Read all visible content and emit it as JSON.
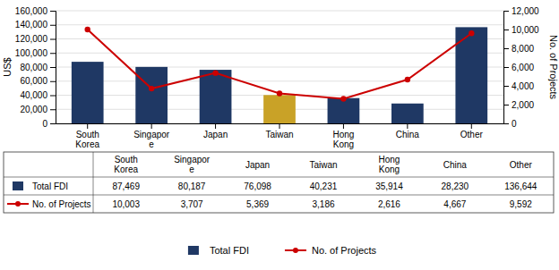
{
  "chart_data": {
    "type": "bar",
    "categories": [
      "South\nKorea",
      "Singapor\ne",
      "Japan",
      "Taiwan",
      "Hong\nKong",
      "China",
      "Other"
    ],
    "series": [
      {
        "name": "Total FDI",
        "type": "bar",
        "colors": [
          "#1f3864",
          "#1f3864",
          "#1f3864",
          "#c9a227",
          "#1f3864",
          "#1f3864",
          "#1f3864"
        ],
        "values": [
          87469,
          80187,
          76098,
          40231,
          35914,
          28230,
          136644
        ],
        "value_labels": [
          "87,469",
          "80,187",
          "76,098",
          "40,231",
          "35,914",
          "28,230",
          "136,644"
        ]
      },
      {
        "name": "No. of Projects",
        "type": "line",
        "axis": "y2",
        "color": "#cc0000",
        "marker": "o",
        "values": [
          10003,
          3707,
          5369,
          3186,
          2616,
          4667,
          9592
        ],
        "value_labels": [
          "10,003",
          "3,707",
          "5,369",
          "3,186",
          "2,616",
          "4,667",
          "9,592"
        ]
      }
    ],
    "ylabel": "US$",
    "y2label": "No. of Projects",
    "ylim": [
      0,
      160000
    ],
    "yticks": [
      0,
      {
        "value": 20000,
        "label": "20,000"
      },
      {
        "value": 40000,
        "label": "40,000"
      },
      {
        "value": 60000,
        "label": "60,000"
      },
      {
        "value": 80000,
        "label": "80,000"
      },
      {
        "value": 100000,
        "label": "100,000"
      },
      {
        "value": 120000,
        "label": "120,000"
      },
      {
        "value": 140000,
        "label": "140,000"
      },
      {
        "value": 160000,
        "label": "160,000"
      }
    ],
    "y2lim": [
      0,
      12000
    ],
    "y2ticks": [
      0,
      {
        "value": 2000,
        "label": "2,000"
      },
      {
        "value": 4000,
        "label": "4,000"
      },
      {
        "value": 6000,
        "label": "6,000"
      },
      {
        "value": 8000,
        "label": "8,000"
      },
      {
        "value": 10000,
        "label": "10,000"
      },
      {
        "value": 12000,
        "label": "12,000"
      }
    ],
    "grid": true,
    "data_labels": true,
    "legend": "bottom"
  }
}
